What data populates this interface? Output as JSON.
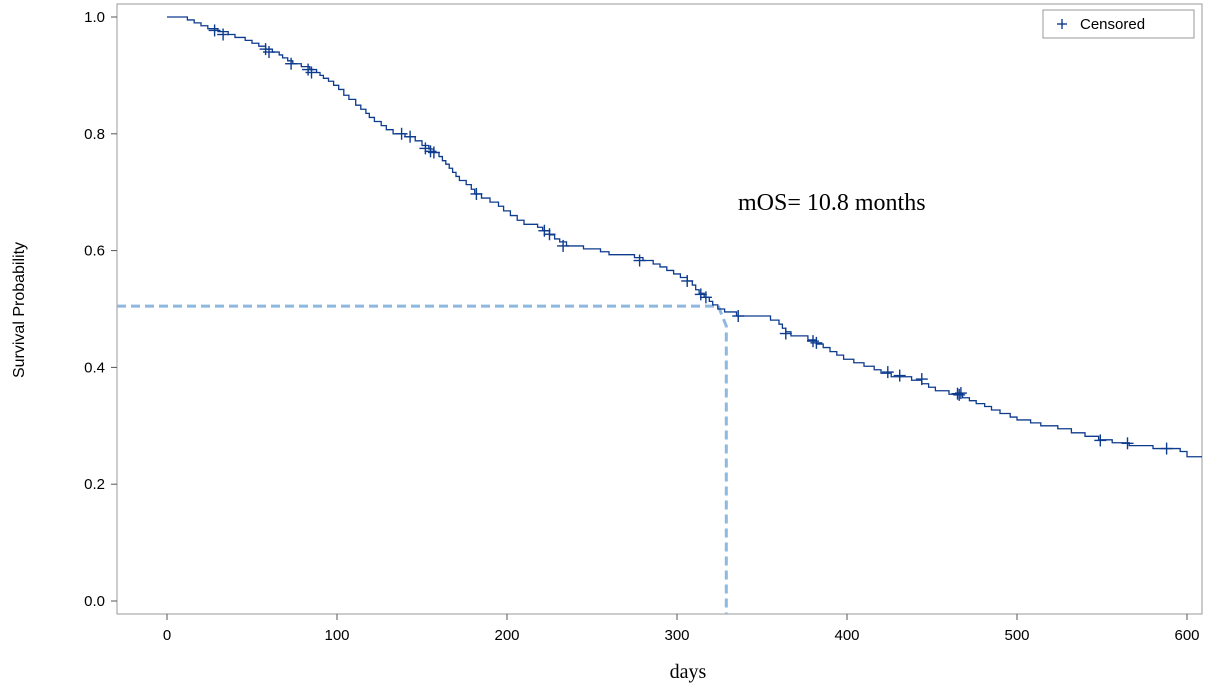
{
  "chart_data": {
    "type": "line",
    "subtype": "kaplan-meier step",
    "title": "",
    "xlabel": "days",
    "ylabel": "Survival Probability",
    "xlim": [
      -30,
      605
    ],
    "ylim": [
      -0.02,
      1.02
    ],
    "x_ticks": [
      0,
      100,
      200,
      300,
      400,
      500,
      600
    ],
    "x_tick_labels": [
      "0",
      "100",
      "200",
      "300",
      "400",
      "500",
      "600"
    ],
    "y_ticks": [
      0.0,
      0.2,
      0.4,
      0.6,
      0.8,
      1.0
    ],
    "y_tick_labels": [
      "0.0",
      "0.2",
      "0.4",
      "0.6",
      "0.8",
      "1.0"
    ],
    "grid": false,
    "legend": {
      "position": "top-right",
      "entries": [
        {
          "label": "Censored",
          "marker": "+",
          "color": "#0d3b8e"
        }
      ]
    },
    "annotation": "mOS= 10.8 months",
    "curve_color": "#0d3b8e",
    "reference_color": "#8fb8e0",
    "median": {
      "x": 329,
      "y": 0.505
    },
    "series": [
      {
        "steps": [
          [
            0,
            1.0
          ],
          [
            12,
            0.995
          ],
          [
            16,
            0.99
          ],
          [
            20,
            0.985
          ],
          [
            24,
            0.98
          ],
          [
            30,
            0.975
          ],
          [
            36,
            0.97
          ],
          [
            40,
            0.965
          ],
          [
            46,
            0.96
          ],
          [
            50,
            0.955
          ],
          [
            54,
            0.95
          ],
          [
            58,
            0.945
          ],
          [
            62,
            0.94
          ],
          [
            66,
            0.935
          ],
          [
            68,
            0.93
          ],
          [
            71,
            0.925
          ],
          [
            74,
            0.92
          ],
          [
            79,
            0.915
          ],
          [
            84,
            0.91
          ],
          [
            88,
            0.905
          ],
          [
            90,
            0.9
          ],
          [
            92,
            0.895
          ],
          [
            95,
            0.89
          ],
          [
            98,
            0.883
          ],
          [
            101,
            0.876
          ],
          [
            104,
            0.866
          ],
          [
            107,
            0.859
          ],
          [
            111,
            0.849
          ],
          [
            114,
            0.842
          ],
          [
            117,
            0.835
          ],
          [
            119,
            0.828
          ],
          [
            122,
            0.821
          ],
          [
            126,
            0.814
          ],
          [
            129,
            0.807
          ],
          [
            133,
            0.8
          ],
          [
            140,
            0.795
          ],
          [
            146,
            0.788
          ],
          [
            150,
            0.78
          ],
          [
            154,
            0.774
          ],
          [
            157,
            0.768
          ],
          [
            160,
            0.761
          ],
          [
            162,
            0.754
          ],
          [
            164,
            0.748
          ],
          [
            166,
            0.741
          ],
          [
            168,
            0.734
          ],
          [
            170,
            0.727
          ],
          [
            172,
            0.72
          ],
          [
            176,
            0.713
          ],
          [
            179,
            0.705
          ],
          [
            181,
            0.697
          ],
          [
            185,
            0.69
          ],
          [
            190,
            0.683
          ],
          [
            195,
            0.676
          ],
          [
            198,
            0.668
          ],
          [
            202,
            0.66
          ],
          [
            206,
            0.652
          ],
          [
            210,
            0.645
          ],
          [
            218,
            0.64
          ],
          [
            221,
            0.634
          ],
          [
            225,
            0.627
          ],
          [
            228,
            0.62
          ],
          [
            231,
            0.615
          ],
          [
            235,
            0.608
          ],
          [
            245,
            0.603
          ],
          [
            255,
            0.598
          ],
          [
            260,
            0.593
          ],
          [
            275,
            0.588
          ],
          [
            280,
            0.583
          ],
          [
            286,
            0.577
          ],
          [
            290,
            0.572
          ],
          [
            294,
            0.566
          ],
          [
            298,
            0.56
          ],
          [
            302,
            0.554
          ],
          [
            306,
            0.548
          ],
          [
            309,
            0.541
          ],
          [
            311,
            0.533
          ],
          [
            313,
            0.527
          ],
          [
            316,
            0.52
          ],
          [
            319,
            0.513
          ],
          [
            321,
            0.507
          ],
          [
            324,
            0.5
          ],
          [
            328,
            0.495
          ],
          [
            335,
            0.488
          ],
          [
            355,
            0.481
          ],
          [
            360,
            0.474
          ],
          [
            362,
            0.467
          ],
          [
            364,
            0.461
          ],
          [
            367,
            0.454
          ],
          [
            377,
            0.447
          ],
          [
            382,
            0.44
          ],
          [
            386,
            0.434
          ],
          [
            390,
            0.427
          ],
          [
            394,
            0.421
          ],
          [
            398,
            0.414
          ],
          [
            404,
            0.408
          ],
          [
            410,
            0.402
          ],
          [
            416,
            0.396
          ],
          [
            420,
            0.39
          ],
          [
            426,
            0.384
          ],
          [
            438,
            0.378
          ],
          [
            444,
            0.372
          ],
          [
            448,
            0.366
          ],
          [
            452,
            0.36
          ],
          [
            460,
            0.354
          ],
          [
            468,
            0.348
          ],
          [
            472,
            0.343
          ],
          [
            476,
            0.338
          ],
          [
            481,
            0.333
          ],
          [
            485,
            0.327
          ],
          [
            490,
            0.321
          ],
          [
            496,
            0.315
          ],
          [
            500,
            0.31
          ],
          [
            508,
            0.305
          ],
          [
            514,
            0.3
          ],
          [
            524,
            0.295
          ],
          [
            532,
            0.288
          ],
          [
            540,
            0.282
          ],
          [
            548,
            0.276
          ],
          [
            556,
            0.271
          ],
          [
            566,
            0.266
          ],
          [
            580,
            0.261
          ],
          [
            596,
            0.256
          ],
          [
            600,
            0.247
          ],
          [
            610,
            0.247
          ]
        ],
        "censored": [
          [
            28,
            0.977
          ],
          [
            33,
            0.97
          ],
          [
            58,
            0.945
          ],
          [
            60,
            0.94
          ],
          [
            73,
            0.92
          ],
          [
            83,
            0.91
          ],
          [
            85,
            0.905
          ],
          [
            138,
            0.8
          ],
          [
            143,
            0.795
          ],
          [
            152,
            0.775
          ],
          [
            155,
            0.77
          ],
          [
            157,
            0.768
          ],
          [
            182,
            0.697
          ],
          [
            222,
            0.634
          ],
          [
            225,
            0.628
          ],
          [
            233,
            0.608
          ],
          [
            278,
            0.583
          ],
          [
            306,
            0.548
          ],
          [
            314,
            0.525
          ],
          [
            317,
            0.52
          ],
          [
            336,
            0.488
          ],
          [
            364,
            0.458
          ],
          [
            380,
            0.445
          ],
          [
            382,
            0.442
          ],
          [
            424,
            0.392
          ],
          [
            431,
            0.386
          ],
          [
            444,
            0.38
          ],
          [
            465,
            0.355
          ],
          [
            466,
            0.353
          ],
          [
            467,
            0.356
          ],
          [
            549,
            0.275
          ],
          [
            565,
            0.27
          ],
          [
            588,
            0.261
          ]
        ]
      }
    ]
  }
}
